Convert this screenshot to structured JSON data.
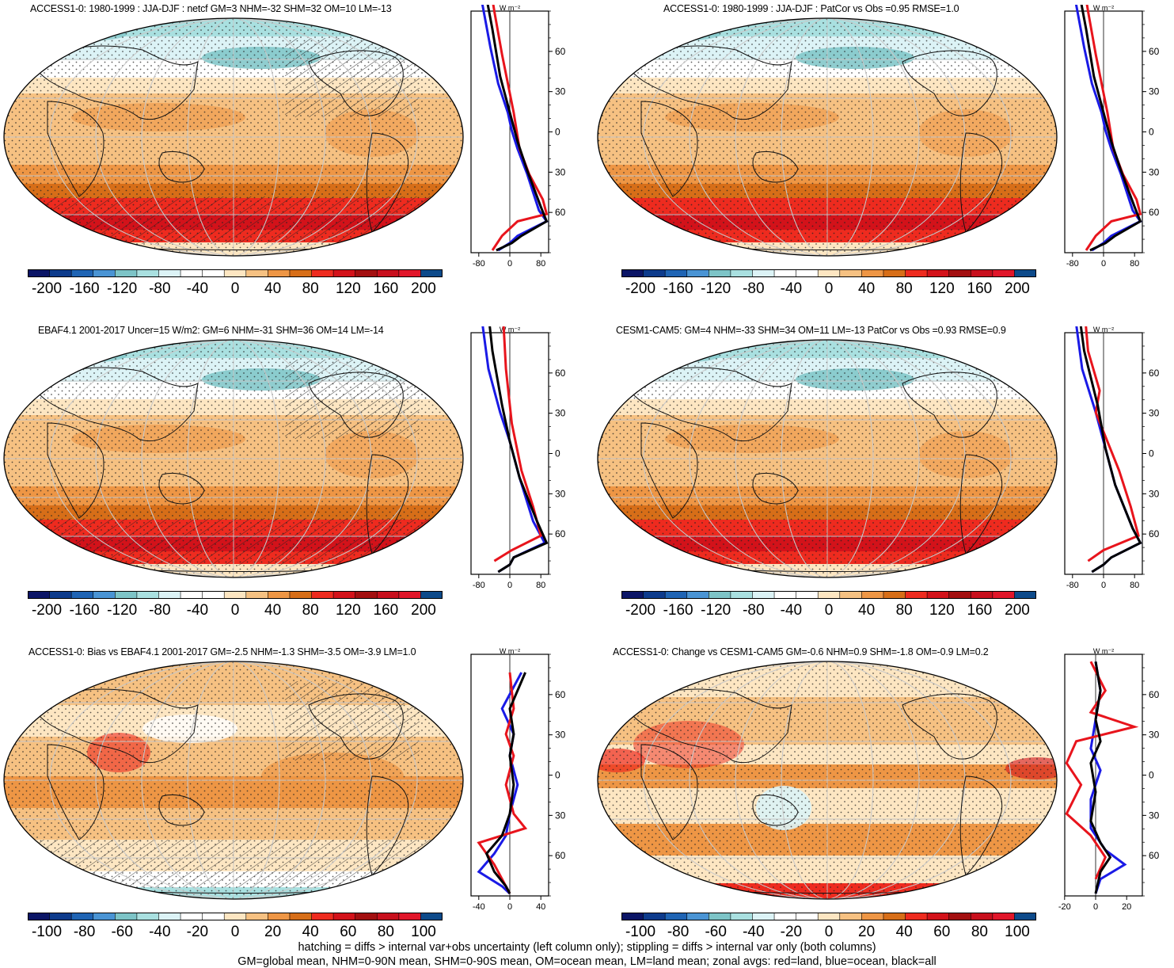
{
  "panels": [
    {
      "id": "p1",
      "title": "ACCESS1-0: 1980-1999 : JJA-DJF : netcf GM=3 NHM=-32 SHM=32 OM=10 LM=-13",
      "hatched": true,
      "colorbar_labels": [
        "-200",
        "-160",
        "-120",
        "-80",
        "-40",
        "0",
        "40",
        "80",
        "120",
        "160",
        "200"
      ],
      "zonal_xticks": [
        "-80",
        "0",
        "80"
      ],
      "zonal_yticks": [
        "60N",
        "30N",
        "0",
        "30S",
        "60S"
      ],
      "zonal_unit": "W m⁻²"
    },
    {
      "id": "p2",
      "title": "ACCESS1-0: 1980-1999 : JJA-DJF : PatCor vs Obs =0.95 RMSE=1.0",
      "hatched": false,
      "colorbar_labels": [
        "-200",
        "-160",
        "-120",
        "-80",
        "-40",
        "0",
        "40",
        "80",
        "120",
        "160",
        "200"
      ],
      "zonal_xticks": [
        "-80",
        "0",
        "80"
      ],
      "zonal_yticks": [
        "60N",
        "30N",
        "0",
        "30S",
        "60S"
      ],
      "zonal_unit": "W m⁻²"
    },
    {
      "id": "p3",
      "title": "EBAF4.1 2001-2017 Uncer=15 W/m2: GM=6 NHM=-31 SHM=36 OM=14 LM=-14",
      "hatched": true,
      "colorbar_labels": [
        "-200",
        "-160",
        "-120",
        "-80",
        "-40",
        "0",
        "40",
        "80",
        "120",
        "160",
        "200"
      ],
      "zonal_xticks": [
        "-80",
        "0",
        "80"
      ],
      "zonal_yticks": [
        "60N",
        "30N",
        "0",
        "30S",
        "60S"
      ],
      "zonal_unit": "W m⁻²"
    },
    {
      "id": "p4",
      "title": "CESM1-CAM5: GM=4 NHM=-33 SHM=34 OM=11 LM=-13 PatCor vs Obs =0.93 RMSE=0.9",
      "hatched": false,
      "colorbar_labels": [
        "-200",
        "-160",
        "-120",
        "-80",
        "-40",
        "0",
        "40",
        "80",
        "120",
        "160",
        "200"
      ],
      "zonal_xticks": [
        "-80",
        "0",
        "80"
      ],
      "zonal_yticks": [
        "60N",
        "30N",
        "0",
        "30S",
        "60S"
      ],
      "zonal_unit": "W m⁻²"
    },
    {
      "id": "p5",
      "title": "ACCESS1-0: Bias vs EBAF4.1 2001-2017 GM=-2.5 NHM=-1.3 SHM=-3.5 OM=-3.9 LM=1.0",
      "hatched": true,
      "colorbar_labels": [
        "-100",
        "-80",
        "-60",
        "-40",
        "-20",
        "0",
        "20",
        "40",
        "60",
        "80",
        "100"
      ],
      "zonal_xticks": [
        "-40",
        "0",
        "40"
      ],
      "zonal_yticks": [
        "60N",
        "30N",
        "0",
        "30S",
        "60S"
      ],
      "zonal_unit": "W m⁻²"
    },
    {
      "id": "p6",
      "title": "ACCESS1-0: Change vs CESM1-CAM5 GM=-0.6 NHM=0.9 SHM=-1.8 OM=-0.9 LM=0.2",
      "hatched": false,
      "colorbar_labels": [
        "-100",
        "-80",
        "-60",
        "-40",
        "-20",
        "0",
        "20",
        "40",
        "60",
        "80",
        "100"
      ],
      "zonal_xticks": [
        "-20",
        "0",
        "20"
      ],
      "zonal_yticks": [
        "60N",
        "30N",
        "0",
        "30S",
        "60S"
      ],
      "zonal_unit": "W m⁻²"
    }
  ],
  "colorbar_colors": [
    "#0b1566",
    "#0d3b8c",
    "#1f64b4",
    "#4a94d4",
    "#7dc4c7",
    "#a9e0e0",
    "#dcf3f6",
    "#ffffff",
    "#ffffff",
    "#fde6c2",
    "#f6c182",
    "#ee9645",
    "#d76e18",
    "#ee2b1f",
    "#d3121a",
    "#a30f10",
    "#c80f1d",
    "#e1162a",
    "#0d4a8a"
  ],
  "footer": {
    "line1": "hatching = diffs > internal var+obs uncertainty (left column only); stippling = diffs > internal var only (both columns)",
    "line2": "GM=global mean, NHM=0-90N mean, SHM=0-90S mean, OM=ocean mean, LM=land mean; zonal avgs: red=land, blue=ocean, black=all"
  },
  "colors": {
    "land": "#e8141c",
    "ocean": "#1a1ae6",
    "all": "#000000"
  }
}
